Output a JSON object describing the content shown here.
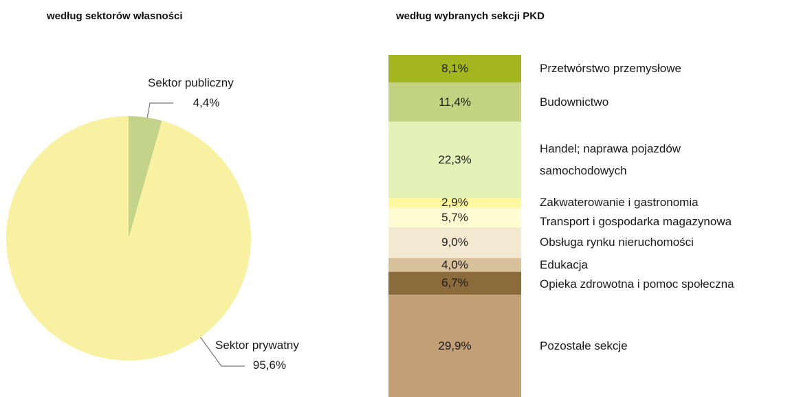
{
  "chart_data": [
    {
      "type": "pie",
      "title": "według sektorów własności",
      "categories": [
        "Sektor publiczny",
        "Sektor prywatny"
      ],
      "values": [
        4.4,
        95.6
      ],
      "value_labels": [
        "4,4%",
        "95,6%"
      ],
      "colors": [
        "#c3d48a",
        "#f8f1a2"
      ]
    },
    {
      "type": "stacked-bar",
      "title": "według wybranych sekcji PKD",
      "categories": [
        "Przetwórstwo przemysłowe",
        "Budownictwo",
        "Handel; naprawa pojazdów\nsamochodowych",
        "Zakwaterowanie i gastronomia",
        "Transport i gospodarka magazynowa",
        "Obsługa rynku nieruchomości",
        "Edukacja",
        "Opieka zdrowotna i pomoc społeczna",
        "Pozostałe sekcje"
      ],
      "values": [
        8.1,
        11.4,
        22.3,
        2.9,
        5.7,
        9.0,
        4.0,
        6.7,
        29.9
      ],
      "value_labels": [
        "8,1%",
        "11,4%",
        "22,3%",
        "2,9%",
        "5,7%",
        "9,0%",
        "4,0%",
        "6,7%",
        "29,9%"
      ],
      "colors": [
        "#a3b620",
        "#c3d381",
        "#e4f1b7",
        "#fdf7a0",
        "#fefcd2",
        "#f2e9d0",
        "#d7c09a",
        "#8b6a3c",
        "#c29f77"
      ]
    }
  ]
}
